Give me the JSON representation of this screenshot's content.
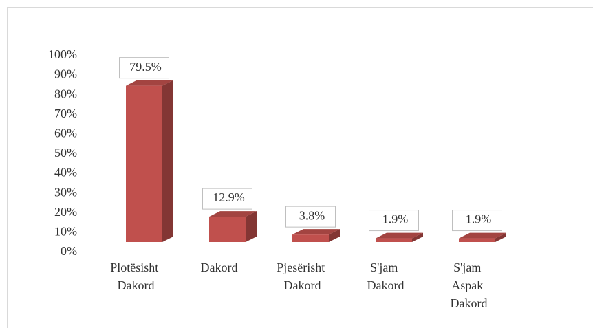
{
  "chart_data": {
    "type": "bar",
    "categories": [
      "Plotësisht Dakord",
      "Dakord",
      "Pjesërisht Dakord",
      "S'jam Dakord",
      "S'jam Aspak Dakord"
    ],
    "values": [
      79.5,
      12.9,
      3.8,
      1.9,
      1.9
    ],
    "value_labels": [
      "79.5%",
      "12.9%",
      "3.8%",
      "1.9%",
      "1.9%"
    ],
    "color": "#c0504d",
    "ylim": [
      0,
      100
    ],
    "yticks": [
      {
        "value": 0,
        "label": "0%"
      },
      {
        "value": 10,
        "label": "10%"
      },
      {
        "value": 20,
        "label": "20%"
      },
      {
        "value": 30,
        "label": "30%"
      },
      {
        "value": 40,
        "label": "40%"
      },
      {
        "value": 50,
        "label": "50%"
      },
      {
        "value": 60,
        "label": "60%"
      },
      {
        "value": 70,
        "label": "70%"
      },
      {
        "value": 80,
        "label": "80%"
      },
      {
        "value": 90,
        "label": "90%"
      },
      {
        "value": 100,
        "label": "100%"
      }
    ],
    "grid": false
  }
}
